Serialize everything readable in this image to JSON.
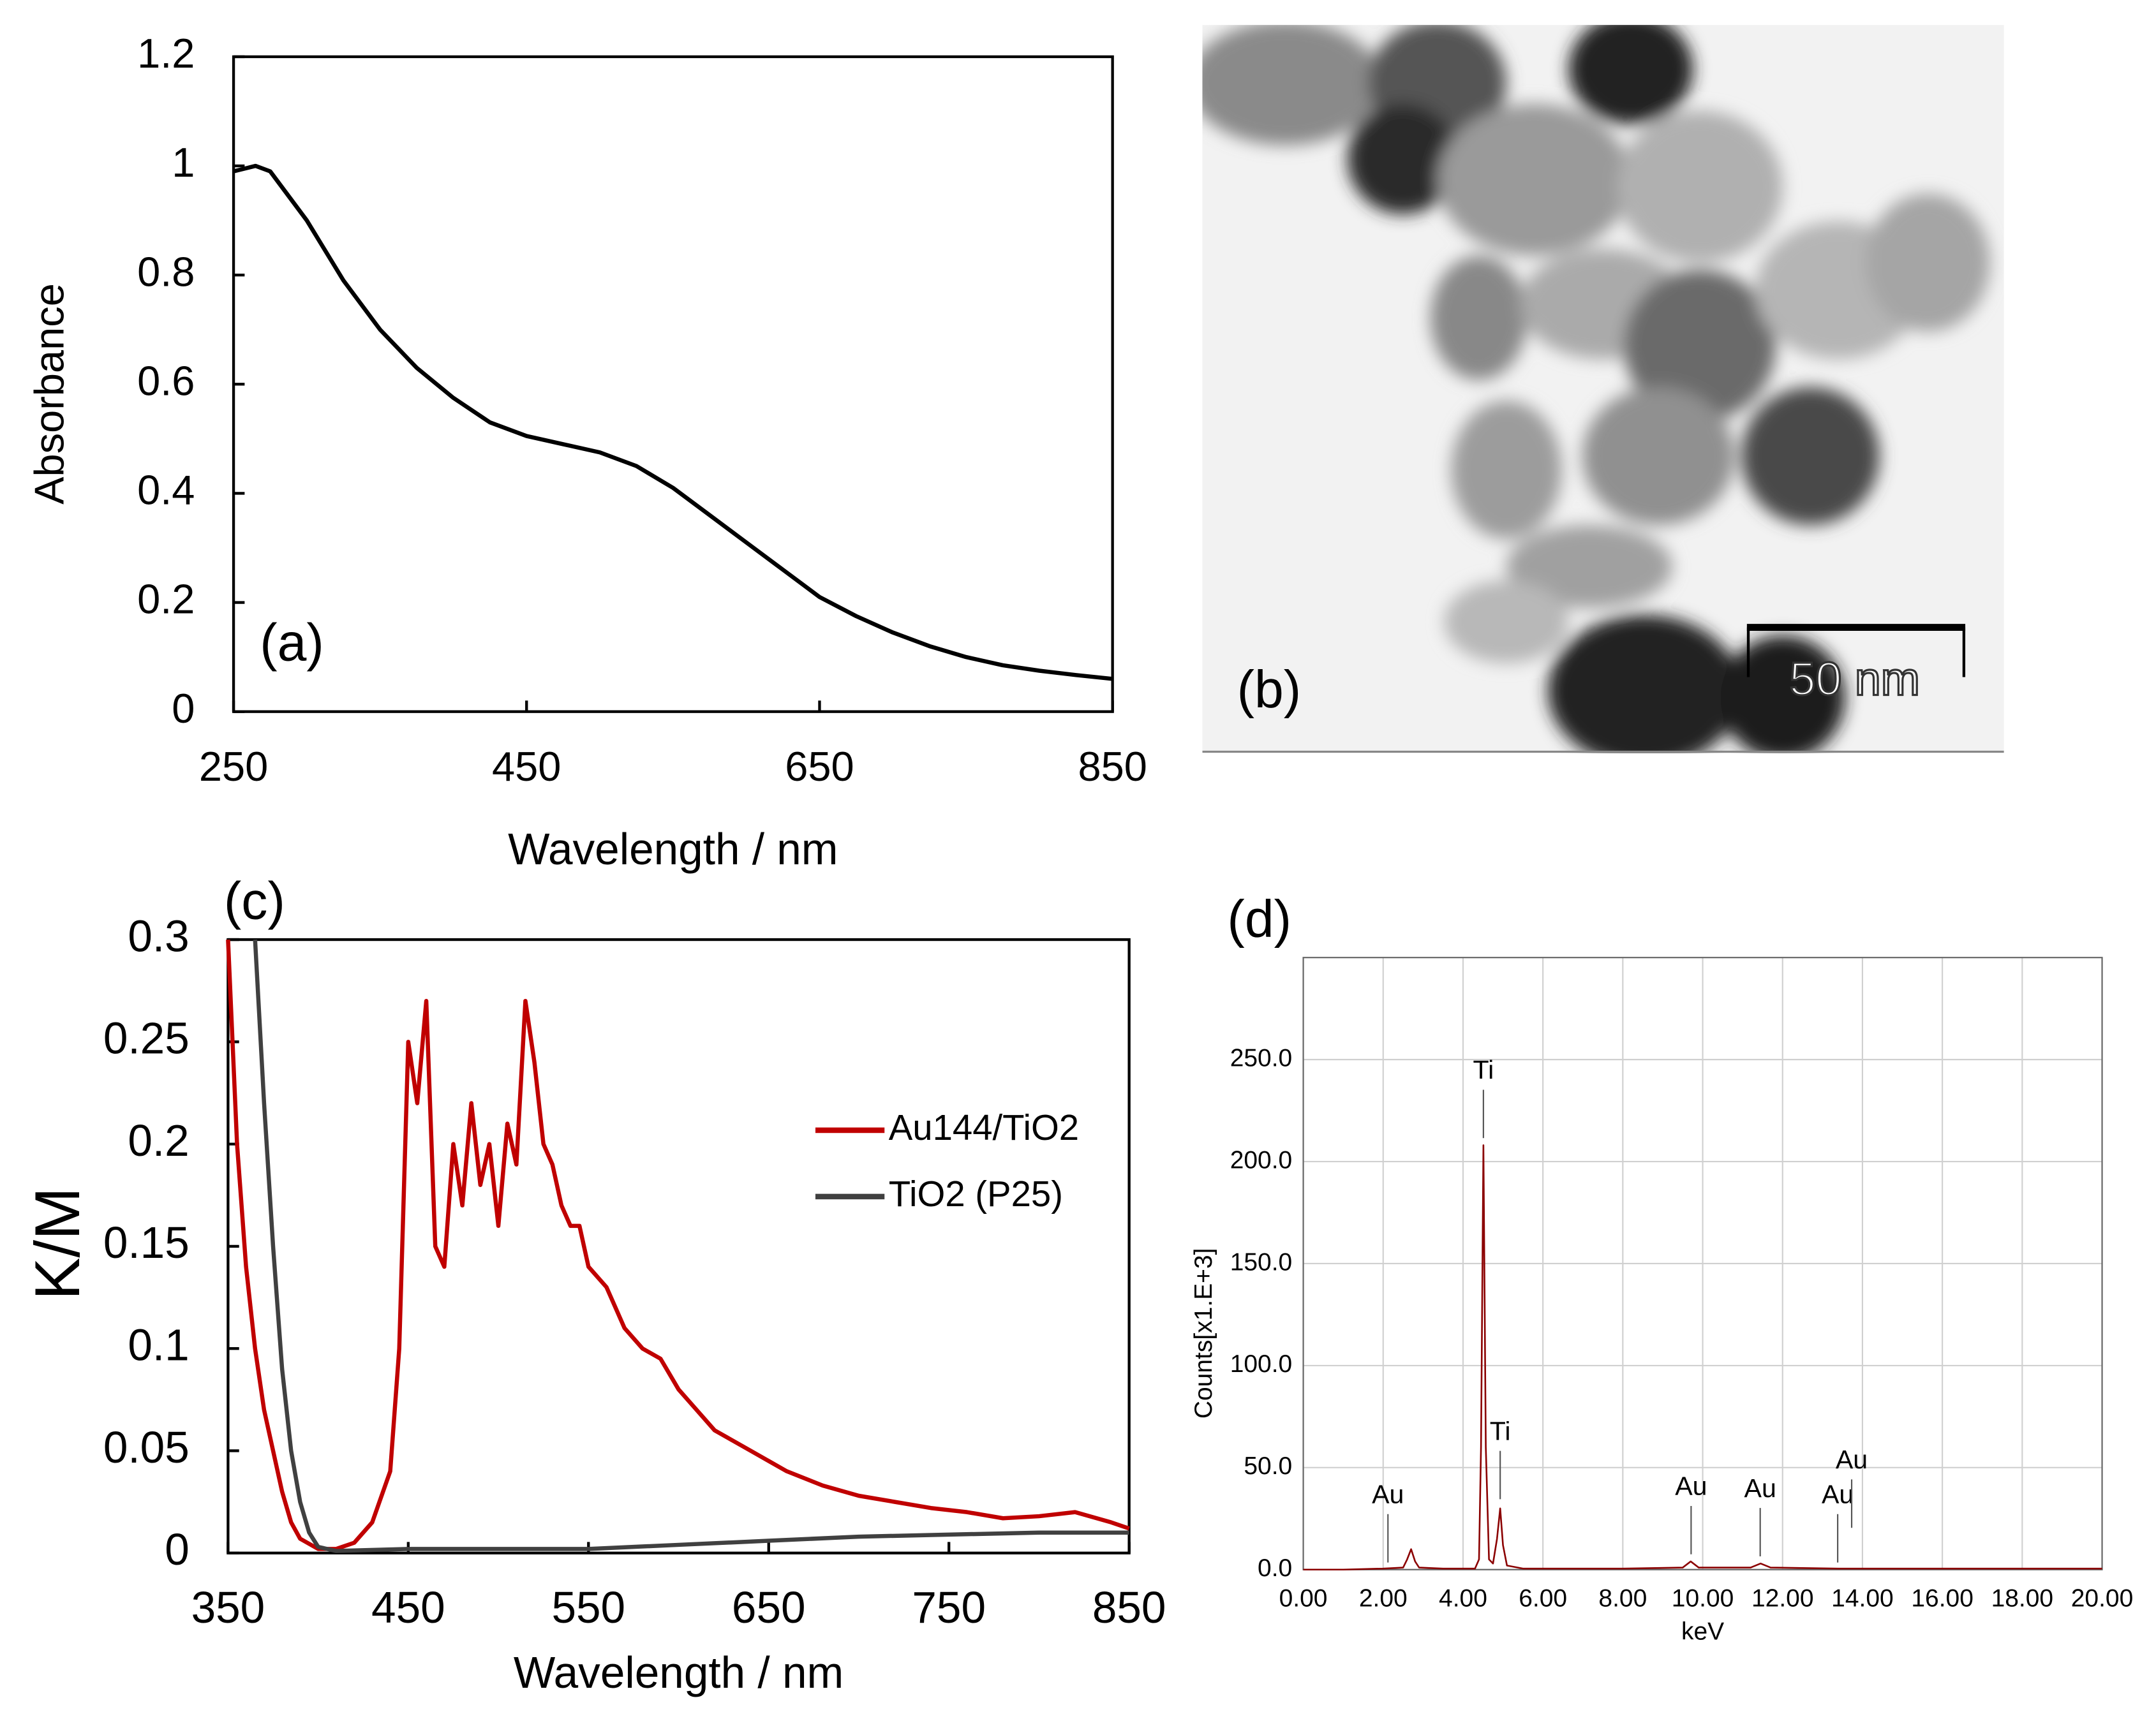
{
  "chart_data": [
    {
      "type": "line",
      "panel_label": "(a)",
      "x_label": "Wavelength / nm",
      "y_label": "Absorbance",
      "xlim": [
        250,
        850
      ],
      "xticks": [
        250,
        450,
        650,
        850
      ],
      "ylim": [
        0,
        1.2
      ],
      "yticks": [
        0,
        0.2,
        0.4,
        0.6,
        0.8,
        1,
        1.2
      ],
      "color": "#000000",
      "x": [
        250,
        265,
        275,
        300,
        325,
        350,
        375,
        400,
        425,
        450,
        475,
        500,
        525,
        550,
        575,
        600,
        625,
        650,
        675,
        700,
        725,
        750,
        775,
        800,
        825,
        850
      ],
      "values": [
        0.99,
        1.0,
        0.99,
        0.9,
        0.79,
        0.7,
        0.63,
        0.575,
        0.53,
        0.505,
        0.49,
        0.475,
        0.45,
        0.41,
        0.36,
        0.31,
        0.26,
        0.21,
        0.175,
        0.145,
        0.12,
        0.1,
        0.085,
        0.075,
        0.067,
        0.06
      ]
    },
    {
      "type": "line",
      "panel_label": "(c)",
      "x_label": "Wavelength / nm",
      "y_label": "K/M",
      "xlim": [
        350,
        850
      ],
      "xticks": [
        350,
        450,
        550,
        650,
        750,
        850
      ],
      "ylim": [
        0,
        0.3
      ],
      "yticks": [
        0,
        0.05,
        0.1,
        0.15,
        0.2,
        0.25,
        0.3
      ],
      "legend": "right",
      "series": [
        {
          "name": "Au144/TiO2",
          "color": "#c00000",
          "x": [
            350,
            355,
            360,
            365,
            370,
            375,
            380,
            385,
            390,
            400,
            410,
            420,
            430,
            440,
            445,
            450,
            455,
            460,
            465,
            470,
            475,
            480,
            485,
            490,
            495,
            500,
            505,
            510,
            515,
            520,
            525,
            530,
            535,
            540,
            545,
            550,
            560,
            570,
            580,
            590,
            600,
            610,
            620,
            630,
            640,
            650,
            660,
            680,
            700,
            720,
            740,
            760,
            780,
            800,
            820,
            840,
            850
          ],
          "values": [
            0.3,
            0.2,
            0.14,
            0.1,
            0.07,
            0.05,
            0.03,
            0.015,
            0.007,
            0.002,
            0.002,
            0.005,
            0.015,
            0.04,
            0.1,
            0.25,
            0.22,
            0.27,
            0.15,
            0.14,
            0.2,
            0.17,
            0.22,
            0.18,
            0.2,
            0.16,
            0.21,
            0.19,
            0.27,
            0.24,
            0.2,
            0.19,
            0.17,
            0.16,
            0.16,
            0.14,
            0.13,
            0.11,
            0.1,
            0.095,
            0.08,
            0.07,
            0.06,
            0.055,
            0.05,
            0.045,
            0.04,
            0.033,
            0.028,
            0.025,
            0.022,
            0.02,
            0.017,
            0.018,
            0.02,
            0.015,
            0.012
          ]
        },
        {
          "name": "TiO2 (P25)",
          "color": "#404040",
          "x": [
            365,
            370,
            375,
            380,
            385,
            390,
            395,
            400,
            410,
            450,
            550,
            600,
            650,
            700,
            750,
            800,
            850
          ],
          "values": [
            0.3,
            0.22,
            0.15,
            0.09,
            0.05,
            0.025,
            0.01,
            0.003,
            0.001,
            0.002,
            0.002,
            0.004,
            0.006,
            0.008,
            0.009,
            0.01,
            0.01
          ]
        }
      ]
    },
    {
      "type": "line",
      "panel_label": "(d)",
      "x_label": "keV",
      "y_label": "Counts[x1.E+3]",
      "xlim": [
        0,
        20
      ],
      "xticks": [
        {
          "value": 0,
          "label": "0.00"
        },
        {
          "value": 2,
          "label": "2.00"
        },
        {
          "value": 4,
          "label": "4.00"
        },
        {
          "value": 6,
          "label": "6.00"
        },
        {
          "value": 8,
          "label": "8.00"
        },
        {
          "value": 10,
          "label": "10.00"
        },
        {
          "value": 12,
          "label": "12.00"
        },
        {
          "value": 14,
          "label": "14.00"
        },
        {
          "value": 16,
          "label": "16.00"
        },
        {
          "value": 18,
          "label": "18.00"
        },
        {
          "value": 20,
          "label": "20.00"
        }
      ],
      "ylim": [
        0,
        300
      ],
      "yticks": [
        {
          "value": 0,
          "label": "0.0"
        },
        {
          "value": 50,
          "label": "50.0"
        },
        {
          "value": 100,
          "label": "100.0"
        },
        {
          "value": 150,
          "label": "150.0"
        },
        {
          "value": 200,
          "label": "200.0"
        },
        {
          "value": 250,
          "label": "250.0"
        }
      ],
      "grid": true,
      "color": "#8b0000",
      "x": [
        0,
        1,
        2,
        2.5,
        2.6,
        2.7,
        2.8,
        2.9,
        3.5,
        4.3,
        4.4,
        4.45,
        4.51,
        4.57,
        4.65,
        4.75,
        4.85,
        4.93,
        5.0,
        5.1,
        5.5,
        8,
        9.5,
        9.7,
        9.9,
        11.2,
        11.45,
        11.7,
        13.4,
        13.7,
        20
      ],
      "values": [
        0,
        0,
        0.5,
        1,
        5,
        10,
        4,
        1,
        0.5,
        0.5,
        5,
        60,
        208,
        60,
        5,
        3,
        15,
        30,
        12,
        2,
        0.5,
        0.5,
        1,
        4,
        1,
        1,
        3,
        1,
        0.5,
        0.5,
        0.5
      ],
      "annotations": [
        {
          "text": "Au",
          "x": 2.12,
          "y": 36
        },
        {
          "text": "Ti",
          "x": 4.51,
          "y": 244
        },
        {
          "text": "Ti",
          "x": 4.93,
          "y": 67
        },
        {
          "text": "Au",
          "x": 9.71,
          "y": 40
        },
        {
          "text": "Au",
          "x": 11.44,
          "y": 39
        },
        {
          "text": "Au",
          "x": 13.38,
          "y": 36
        },
        {
          "text": "Au",
          "x": 13.73,
          "y": 53
        }
      ]
    }
  ],
  "micrograph": {
    "panel_label": "(b)",
    "scale_bar": "50 nm"
  }
}
